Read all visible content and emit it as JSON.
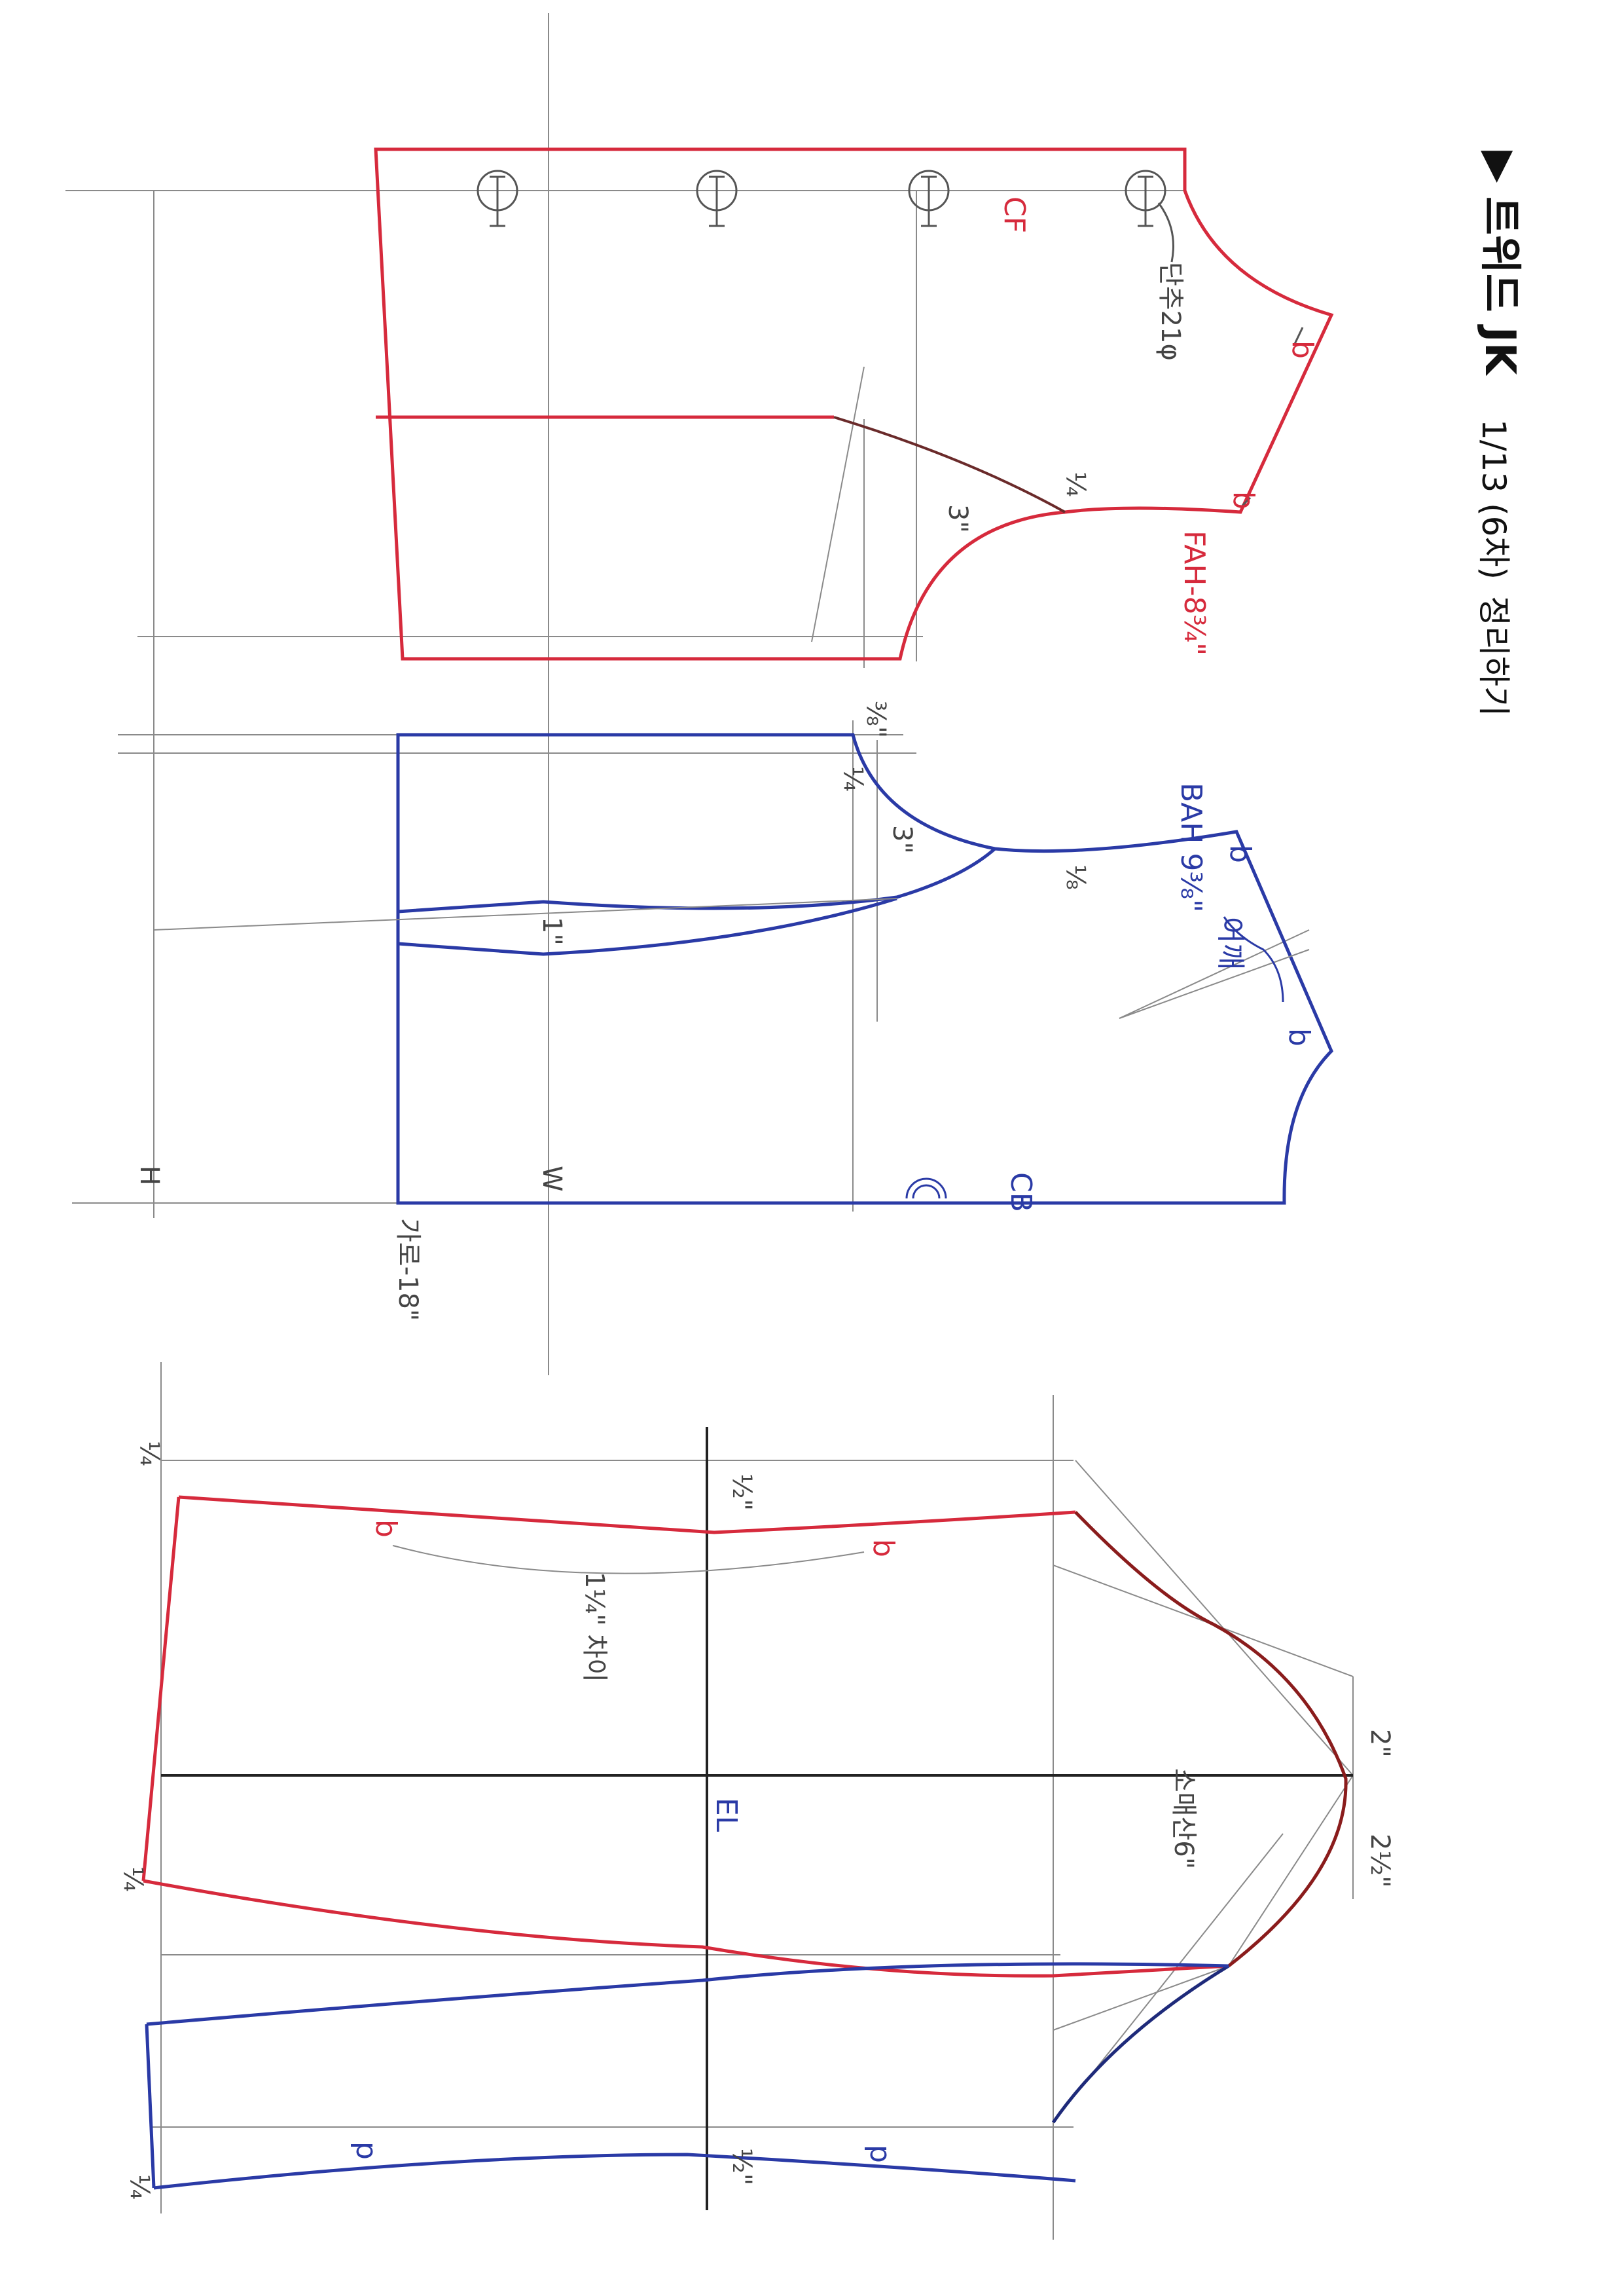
{
  "colors": {
    "front": "#d62a3c",
    "back": "#2a3aa6",
    "sleeve_cap": "#8a1c1c",
    "pencil": "#8a8a8a"
  },
  "title": {
    "marker": "▶",
    "name": "트위드 JK",
    "date": "1/13 (6차)",
    "note": "정리하기"
  },
  "front": {
    "cf_label": "CF",
    "button_note": "단추21φ",
    "armhole_label": "FAH-8¾\"",
    "dart_mark": "¼",
    "dart_dist": "3\"",
    "notch": "b",
    "button_icon": "button-circle-icon"
  },
  "back": {
    "cb_label": "CB",
    "armhole_label": "BAH 9⅜\"",
    "shoulder_note": "어깨",
    "neck_drop": "⅜\"",
    "neck_mark": "¼",
    "armhole_dist": "3\"",
    "armhole_mark": "⅛",
    "dart_width": "1\"",
    "width_label": "가로-18\"",
    "hip_label": "H",
    "waist_label": "W",
    "notch": "b"
  },
  "sleeve": {
    "elbow_label": "EL",
    "cap_height": "소매산6\"",
    "ease_note": "1¼\" 차이",
    "cap_top_mark": "2\"",
    "cap_side_mark": "2½\"",
    "top_mark": "½\"",
    "hem_marks": [
      "¼",
      "¼",
      "¼"
    ],
    "seam_mark": "½\"",
    "front_notch": "b",
    "back_notch": "p"
  }
}
